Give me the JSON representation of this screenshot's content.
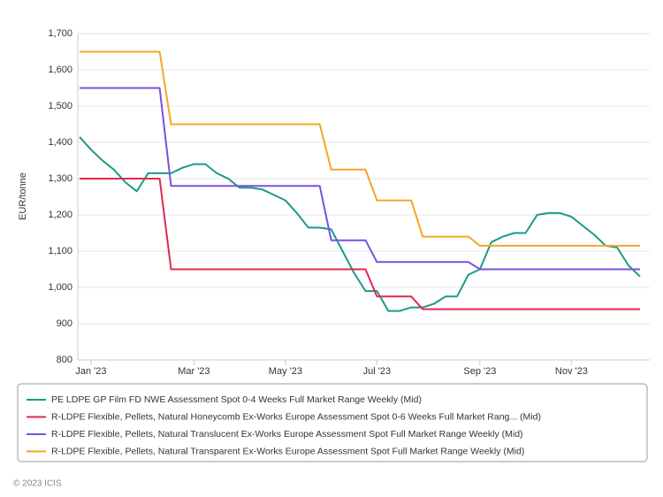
{
  "chart_data": {
    "type": "line",
    "y_label": "EUR/tonne",
    "categories": [
      null,
      "Jan '23",
      null,
      null,
      null,
      null,
      null,
      null,
      null,
      null,
      "Mar '23",
      null,
      null,
      null,
      null,
      null,
      null,
      null,
      "May '23",
      null,
      null,
      null,
      null,
      null,
      null,
      null,
      "Jul '23",
      null,
      null,
      null,
      null,
      null,
      null,
      null,
      null,
      "Sep '23",
      null,
      null,
      null,
      null,
      null,
      null,
      null,
      "Nov '23",
      null,
      null,
      null,
      null,
      null,
      null
    ],
    "series": [
      {
        "name": "PE LDPE GP Film FD NWE Assessment Spot 0-4 Weeks Full Market Range Weekly (Mid)",
        "color": "#1a9a8a",
        "values": [
          1415,
          1380,
          1350,
          1325,
          1290,
          1265,
          1315,
          1315,
          1315,
          1330,
          1340,
          1340,
          1315,
          1300,
          1275,
          1275,
          1270,
          1255,
          1240,
          1205,
          1165,
          1165,
          1160,
          1100,
          1040,
          990,
          990,
          935,
          935,
          945,
          945,
          955,
          975,
          975,
          1035,
          1050,
          1125,
          1140,
          1150,
          1150,
          1200,
          1205,
          1205,
          1195,
          1170,
          1145,
          1115,
          1110,
          1060,
          1030
        ]
      },
      {
        "name": "R-LDPE Flexible, Pellets, Natural Honeycomb Ex-Works Europe Assessment Spot 0-6 Weeks Full Market Rang... (Mid)",
        "color": "#e0284f",
        "values": [
          1300,
          1300,
          1300,
          1300,
          1300,
          1300,
          1300,
          1300,
          1050,
          1050,
          1050,
          1050,
          1050,
          1050,
          1050,
          1050,
          1050,
          1050,
          1050,
          1050,
          1050,
          1050,
          1050,
          1050,
          1050,
          1050,
          975,
          975,
          975,
          975,
          940,
          940,
          940,
          940,
          940,
          940,
          940,
          940,
          940,
          940,
          940,
          940,
          940,
          940,
          940,
          940,
          940,
          940,
          940,
          940
        ]
      },
      {
        "name": "R-LDPE Flexible, Pellets, Natural Translucent Ex-Works Europe Assessment Spot Full Market Range Weekly (Mid)",
        "color": "#7b4fe0",
        "values": [
          1550,
          1550,
          1550,
          1550,
          1550,
          1550,
          1550,
          1550,
          1280,
          1280,
          1280,
          1280,
          1280,
          1280,
          1280,
          1280,
          1280,
          1280,
          1280,
          1280,
          1280,
          1280,
          1130,
          1130,
          1130,
          1130,
          1070,
          1070,
          1070,
          1070,
          1070,
          1070,
          1070,
          1070,
          1070,
          1050,
          1050,
          1050,
          1050,
          1050,
          1050,
          1050,
          1050,
          1050,
          1050,
          1050,
          1050,
          1050,
          1050,
          1050
        ]
      },
      {
        "name": "R-LDPE Flexible, Pellets, Natural Transparent Ex-Works Europe Assessment Spot Full Market Range Weekly (Mid)",
        "color": "#f5a623",
        "values": [
          1650,
          1650,
          1650,
          1650,
          1650,
          1650,
          1650,
          1650,
          1450,
          1450,
          1450,
          1450,
          1450,
          1450,
          1450,
          1450,
          1450,
          1450,
          1450,
          1450,
          1450,
          1450,
          1325,
          1325,
          1325,
          1325,
          1240,
          1240,
          1240,
          1240,
          1140,
          1140,
          1140,
          1140,
          1140,
          1115,
          1115,
          1115,
          1115,
          1115,
          1115,
          1115,
          1115,
          1115,
          1115,
          1115,
          1115,
          1115,
          1115,
          1115
        ]
      }
    ],
    "ylim": [
      800,
      1700
    ],
    "yticks": [
      800,
      900,
      {
        "value": 1000,
        "label": "1,000"
      },
      {
        "value": 1100,
        "label": "1,100"
      },
      {
        "value": 1200,
        "label": "1,200"
      },
      {
        "value": 1300,
        "label": "1,300"
      },
      {
        "value": 1400,
        "label": "1,400"
      },
      {
        "value": 1500,
        "label": "1,500"
      },
      {
        "value": 1600,
        "label": "1,600"
      },
      {
        "value": 1700,
        "label": "1,700"
      }
    ],
    "grid": true,
    "legend": "bottom",
    "credit": "© 2023 ICIS"
  }
}
